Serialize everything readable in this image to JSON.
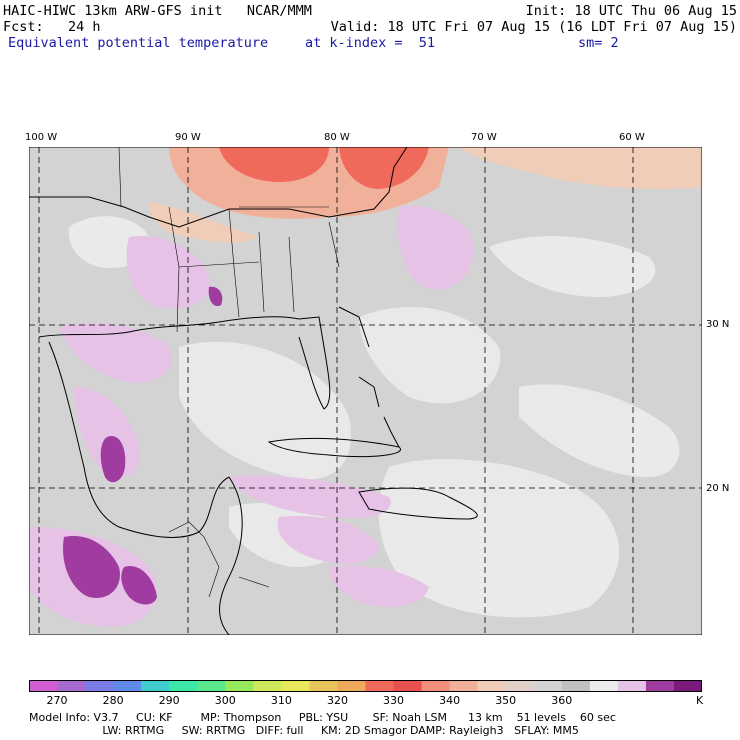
{
  "header": {
    "line1_left": "HAIC-HIWC 13km ARW-GFS init   NCAR/MMM",
    "line1_right": "Init: 18 UTC Thu 06 Aug 15",
    "line2_left": "Fcst:   24 h",
    "line2_right": "Valid: 18 UTC Fri 07 Aug 15 (16 LDT Fri 07 Aug 15)",
    "field_name": "Equivalent potential temperature",
    "level": "at k-index =  51",
    "smoothing": "sm= 2"
  },
  "map": {
    "lon_labels": [
      "100 W",
      "90 W",
      "80 W",
      "70 W",
      "60 W"
    ],
    "lat_labels": [
      "30 N",
      "20 N"
    ],
    "background": "#d3d3d3"
  },
  "colorbar": {
    "colors": [
      "#d15fd1",
      "#a86ad1",
      "#7c7ce6",
      "#5f8be8",
      "#3fcdcd",
      "#3be8a8",
      "#5be88a",
      "#97e85b",
      "#cde85b",
      "#e8e85b",
      "#e8c55b",
      "#f0a85b",
      "#f06a5b",
      "#e84f4f",
      "#f0907a",
      "#f0b09a",
      "#f0cdb8",
      "#e0d0c8",
      "#d3d3d3",
      "#c0c0c0",
      "#ebebeb",
      "#e6c2e6",
      "#a03ca0",
      "#7a1a7a"
    ],
    "labels": [
      "270",
      "280",
      "290",
      "300",
      "310",
      "320",
      "330",
      "340",
      "350",
      "360"
    ],
    "unit": "K"
  },
  "model_info": {
    "line1": "Model Info: V3.7     CU: KF        MP: Thompson     PBL: YSU       SF: Noah LSM      13 km    51 levels    60 sec",
    "line2": "                     LW: RRTMG     SW: RRTMG   DIFF: full     KM: 2D Smagor DAMP: Rayleigh3   SFLAY: MM5"
  }
}
